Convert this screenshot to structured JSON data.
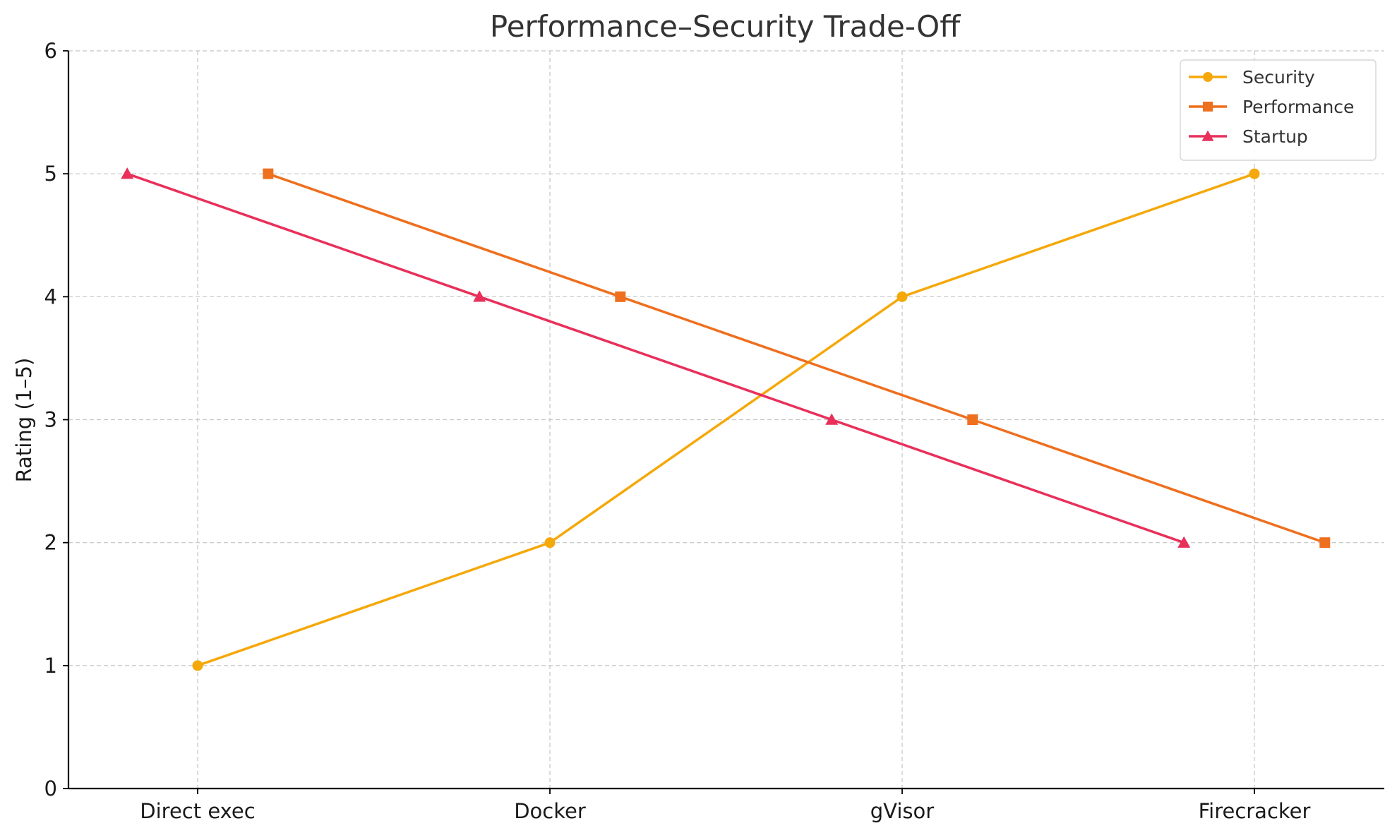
{
  "chart_data": {
    "type": "line",
    "title": "Performance–Security Trade-Off",
    "xlabel": "",
    "ylabel": "Rating (1–5)",
    "categories": [
      "Direct exec",
      "Docker",
      "gVisor",
      "Firecracker"
    ],
    "ylim": [
      0,
      6
    ],
    "yticks": [
      "0",
      "1",
      "2",
      "3",
      "4",
      "5",
      "6"
    ],
    "grid": true,
    "legend_position": "top-right",
    "series": [
      {
        "name": "Security",
        "values": [
          1,
          2,
          4,
          5
        ],
        "color": "#F5A80A",
        "marker": "circle",
        "offset": 0
      },
      {
        "name": "Performance",
        "values": [
          5,
          4,
          3,
          2
        ],
        "color": "#EE6F1E",
        "marker": "square",
        "offset": 0.2
      },
      {
        "name": "Startup",
        "values": [
          5,
          4,
          3,
          2
        ],
        "color": "#E8305A",
        "marker": "triangle",
        "offset": -0.2
      }
    ]
  }
}
